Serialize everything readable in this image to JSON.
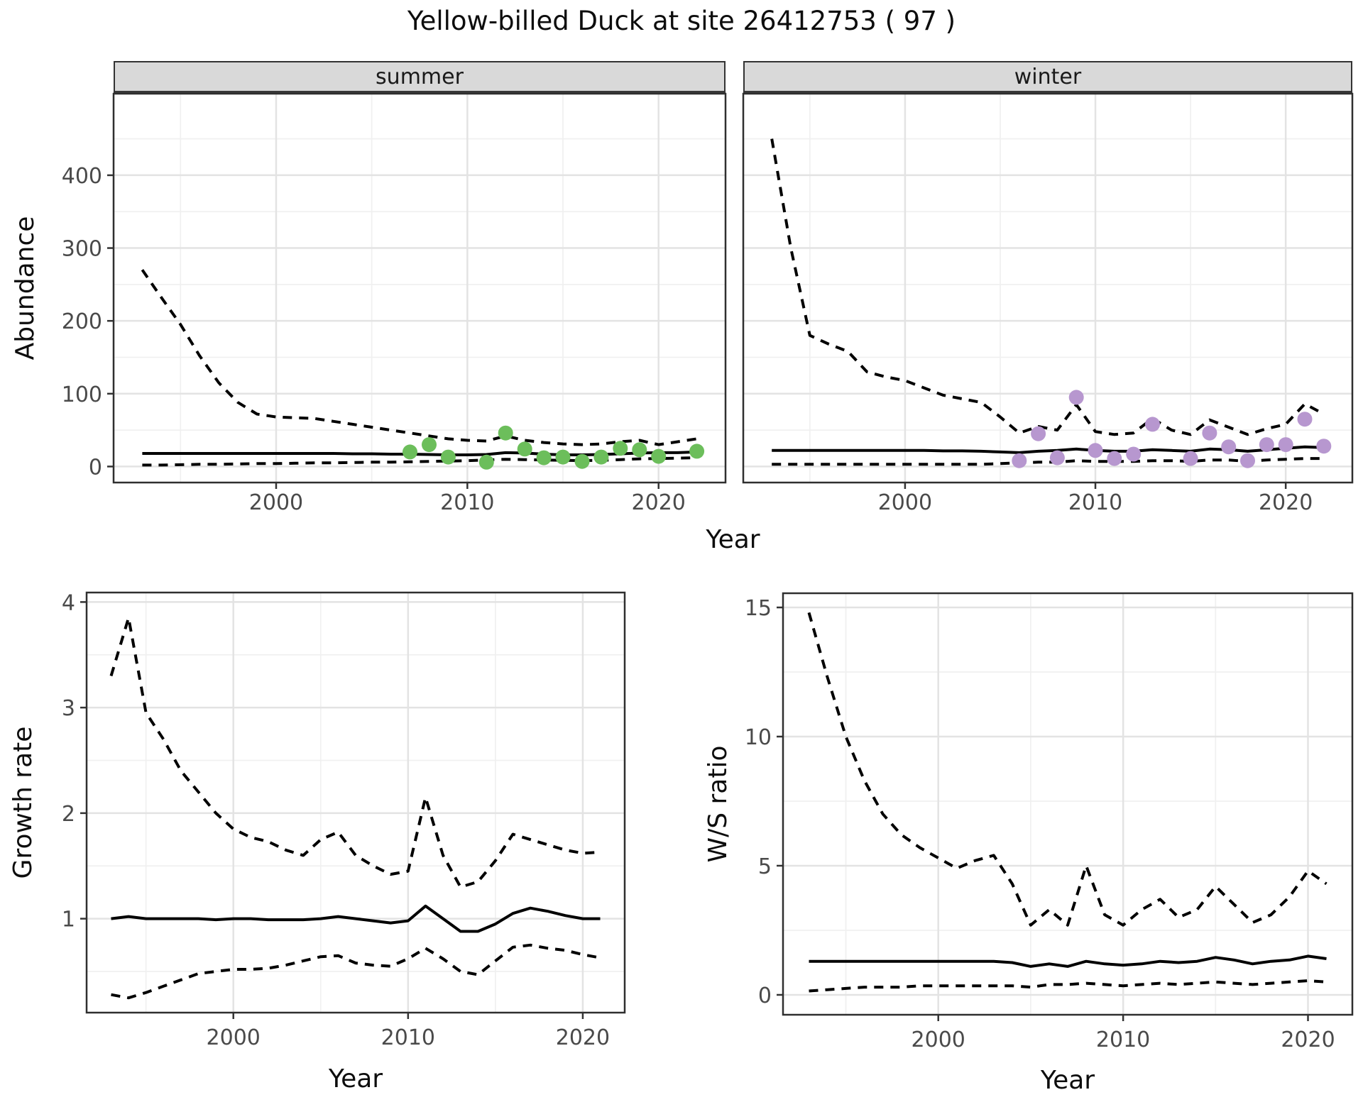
{
  "title": "Yellow-billed Duck at site 26412753 ( 97 )",
  "facets": [
    {
      "label": "summer"
    },
    {
      "label": "winter"
    }
  ],
  "axis_titles": {
    "abundance": "Abundance",
    "year": "Year",
    "growth": "Growth rate",
    "ws": "W/S ratio"
  },
  "colors": {
    "summer_point": "#6CBE5B",
    "winter_point": "#B797CF",
    "line": "#000000",
    "grid_major": "#E3E3E3",
    "grid_minor": "#F0F0F0",
    "panel_border": "#2F2F2F",
    "tick_mark": "#333333",
    "tick_label": "#4A4A4A",
    "strip_bg": "#D9D9D9"
  },
  "chart_data": [
    {
      "id": "abundance-summer",
      "type": "line",
      "title": "summer",
      "xlabel": "Year",
      "ylabel": "Abundance",
      "xlim": [
        1991.5,
        2023.5
      ],
      "ylim": [
        -22,
        512
      ],
      "xticks": [
        2000,
        2010,
        2020
      ],
      "xtick_labels": [
        "2000",
        "2010",
        "2020"
      ],
      "xticks_minor": [
        1995,
        2005,
        2015
      ],
      "yticks": [
        0,
        100,
        200,
        300,
        400
      ],
      "ytick_labels": [
        "0",
        "100",
        "200",
        "300",
        "400"
      ],
      "yticks_minor": [
        50,
        150,
        250,
        350,
        450
      ],
      "show_ytick_labels": true,
      "grid": true,
      "x_years": [
        1993,
        1994,
        1995,
        1996,
        1997,
        1998,
        1999,
        2000,
        2001,
        2002,
        2003,
        2004,
        2005,
        2006,
        2007,
        2008,
        2009,
        2010,
        2011,
        2012,
        2013,
        2014,
        2015,
        2016,
        2017,
        2018,
        2019,
        2020,
        2021,
        2022
      ],
      "series": [
        {
          "name": "ci_upper",
          "style": "dashed",
          "values": [
            270,
            232,
            195,
            152,
            115,
            88,
            72,
            68,
            67,
            66,
            62,
            58,
            54,
            50,
            46,
            42,
            38,
            36,
            35,
            42,
            36,
            33,
            31,
            30,
            31,
            34,
            36,
            30,
            34,
            38
          ]
        },
        {
          "name": "fit",
          "style": "solid",
          "values": [
            18,
            18,
            18,
            18,
            18,
            18,
            18,
            18,
            18,
            18,
            18,
            17.5,
            17.5,
            17,
            17,
            16.5,
            16,
            16,
            16.5,
            19,
            18.5,
            17,
            16,
            16,
            16.5,
            17.5,
            18.5,
            19,
            19,
            20
          ]
        },
        {
          "name": "ci_lower",
          "style": "dashed",
          "values": [
            2,
            2,
            2.5,
            3,
            3,
            3.5,
            4,
            4,
            4.5,
            5,
            5,
            5.5,
            6,
            6,
            6.5,
            7,
            7.5,
            8,
            9,
            10,
            9.5,
            9,
            8.5,
            8,
            8.5,
            9.5,
            10.5,
            11,
            11.5,
            12
          ]
        }
      ],
      "points": {
        "name": "observed-counts",
        "color_key": "summer_point",
        "years": [
          2007,
          2008,
          2009,
          2011,
          2012,
          2013,
          2014,
          2015,
          2016,
          2017,
          2018,
          2019,
          2020,
          2022
        ],
        "values": [
          20,
          30,
          13,
          6,
          46,
          24,
          12,
          13,
          7,
          13,
          25,
          23,
          14,
          21
        ]
      }
    },
    {
      "id": "abundance-winter",
      "type": "line",
      "title": "winter",
      "xlabel": "Year",
      "ylabel": "Abundance",
      "xlim": [
        1991.5,
        2023.5
      ],
      "ylim": [
        -22,
        512
      ],
      "xticks": [
        2000,
        2010,
        2020
      ],
      "xtick_labels": [
        "2000",
        "2010",
        "2020"
      ],
      "xticks_minor": [
        1995,
        2005,
        2015
      ],
      "yticks": [
        0,
        100,
        200,
        300,
        400
      ],
      "ytick_labels": [
        "0",
        "100",
        "200",
        "300",
        "400"
      ],
      "yticks_minor": [
        50,
        150,
        250,
        350,
        450
      ],
      "show_ytick_labels": false,
      "grid": true,
      "x_years": [
        1993,
        1994,
        1995,
        1996,
        1997,
        1998,
        1999,
        2000,
        2001,
        2002,
        2003,
        2004,
        2005,
        2006,
        2007,
        2008,
        2009,
        2010,
        2011,
        2012,
        2013,
        2014,
        2015,
        2016,
        2017,
        2018,
        2019,
        2020,
        2021,
        2022
      ],
      "series": [
        {
          "name": "ci_upper",
          "style": "dashed",
          "values": [
            450,
            300,
            180,
            168,
            158,
            130,
            123,
            118,
            108,
            98,
            93,
            88,
            68,
            46,
            55,
            50,
            85,
            48,
            44,
            46,
            66,
            50,
            44,
            64,
            54,
            44,
            52,
            58,
            86,
            72
          ]
        },
        {
          "name": "fit",
          "style": "solid",
          "values": [
            22,
            22,
            22,
            22,
            22,
            22,
            22,
            22,
            22,
            21.5,
            21.5,
            21,
            20,
            19,
            21,
            22,
            24,
            22,
            21,
            21,
            23,
            22,
            21,
            24,
            23,
            21,
            23,
            25,
            27,
            26
          ]
        },
        {
          "name": "ci_lower",
          "style": "dashed",
          "values": [
            3,
            3,
            3,
            3,
            3,
            3,
            3,
            3,
            3,
            3,
            3,
            3,
            4,
            5,
            6,
            6,
            8,
            7,
            7,
            7,
            8,
            8,
            7,
            9,
            9,
            7,
            9,
            10,
            11,
            11
          ]
        }
      ],
      "points": {
        "name": "observed-counts",
        "color_key": "winter_point",
        "years": [
          2006,
          2007,
          2008,
          2009,
          2010,
          2011,
          2012,
          2013,
          2015,
          2016,
          2017,
          2018,
          2019,
          2020,
          2021,
          2022
        ],
        "values": [
          8,
          45,
          12,
          95,
          22,
          11,
          17,
          58,
          11,
          46,
          27,
          8,
          30,
          30,
          65,
          28
        ]
      }
    },
    {
      "id": "growth-rate",
      "type": "line",
      "title": "Growth rate",
      "xlabel": "Year",
      "ylabel": "Growth rate",
      "xlim": [
        1991.6,
        2022.4
      ],
      "ylim": [
        0.11,
        4.09
      ],
      "xticks": [
        2000,
        2010,
        2020
      ],
      "xtick_labels": [
        "2000",
        "2010",
        "2020"
      ],
      "xticks_minor": [
        1995,
        2005,
        2015
      ],
      "yticks": [
        1,
        2,
        3,
        4
      ],
      "ytick_labels": [
        "1",
        "2",
        "3",
        "4"
      ],
      "yticks_minor": [
        0.5,
        1.5,
        2.5,
        3.5
      ],
      "show_ytick_labels": true,
      "grid": true,
      "x_years": [
        1993,
        1994,
        1995,
        1996,
        1997,
        1998,
        1999,
        2000,
        2001,
        2002,
        2003,
        2004,
        2005,
        2006,
        2007,
        2008,
        2009,
        2010,
        2011,
        2012,
        2013,
        2014,
        2015,
        2016,
        2017,
        2018,
        2019,
        2020,
        2021
      ],
      "series": [
        {
          "name": "ci_upper",
          "style": "dashed",
          "values": [
            3.3,
            3.85,
            2.95,
            2.7,
            2.4,
            2.2,
            2.0,
            1.85,
            1.77,
            1.73,
            1.65,
            1.6,
            1.75,
            1.82,
            1.6,
            1.5,
            1.42,
            1.45,
            2.15,
            1.6,
            1.3,
            1.35,
            1.55,
            1.8,
            1.75,
            1.7,
            1.65,
            1.62,
            1.63
          ]
        },
        {
          "name": "fit",
          "style": "solid",
          "values": [
            1.0,
            1.02,
            1.0,
            1.0,
            1.0,
            1.0,
            0.99,
            1.0,
            1.0,
            0.99,
            0.99,
            0.99,
            1.0,
            1.02,
            1.0,
            0.98,
            0.96,
            0.98,
            1.12,
            1.0,
            0.88,
            0.88,
            0.95,
            1.05,
            1.1,
            1.07,
            1.03,
            1.0,
            1.0
          ]
        },
        {
          "name": "ci_lower",
          "style": "dashed",
          "values": [
            0.28,
            0.25,
            0.3,
            0.36,
            0.42,
            0.48,
            0.5,
            0.52,
            0.52,
            0.53,
            0.56,
            0.6,
            0.64,
            0.65,
            0.58,
            0.56,
            0.55,
            0.62,
            0.72,
            0.62,
            0.5,
            0.47,
            0.6,
            0.73,
            0.75,
            0.72,
            0.7,
            0.66,
            0.63
          ]
        }
      ],
      "points": null
    },
    {
      "id": "ws-ratio",
      "type": "line",
      "title": "W/S ratio",
      "xlabel": "Year",
      "ylabel": "W/S ratio",
      "xlim": [
        1991.6,
        2022.4
      ],
      "ylim": [
        -0.77,
        15.55
      ],
      "xticks": [
        2000,
        2010,
        2020
      ],
      "xtick_labels": [
        "2000",
        "2010",
        "2020"
      ],
      "xticks_minor": [
        1995,
        2005,
        2015
      ],
      "yticks": [
        0,
        5,
        10,
        15
      ],
      "ytick_labels": [
        "0",
        "5",
        "10",
        "15"
      ],
      "yticks_minor": [
        2.5,
        7.5,
        12.5
      ],
      "show_ytick_labels": true,
      "grid": true,
      "x_years": [
        1993,
        1994,
        1995,
        1996,
        1997,
        1998,
        1999,
        2000,
        2001,
        2002,
        2003,
        2004,
        2005,
        2006,
        2007,
        2008,
        2009,
        2010,
        2011,
        2012,
        2013,
        2014,
        2015,
        2016,
        2017,
        2018,
        2019,
        2020,
        2021
      ],
      "series": [
        {
          "name": "ci_upper",
          "style": "dashed",
          "values": [
            14.8,
            12.3,
            10.0,
            8.3,
            7.0,
            6.2,
            5.7,
            5.3,
            4.9,
            5.2,
            5.4,
            4.3,
            2.7,
            3.3,
            2.7,
            5.0,
            3.1,
            2.7,
            3.3,
            3.7,
            3.0,
            3.3,
            4.2,
            3.5,
            2.8,
            3.1,
            3.8,
            4.8,
            4.3
          ]
        },
        {
          "name": "fit",
          "style": "solid",
          "values": [
            1.3,
            1.3,
            1.3,
            1.3,
            1.3,
            1.3,
            1.3,
            1.3,
            1.3,
            1.3,
            1.3,
            1.25,
            1.1,
            1.2,
            1.1,
            1.3,
            1.2,
            1.15,
            1.2,
            1.3,
            1.25,
            1.3,
            1.45,
            1.35,
            1.2,
            1.3,
            1.35,
            1.5,
            1.4
          ]
        },
        {
          "name": "ci_lower",
          "style": "dashed",
          "values": [
            0.15,
            0.2,
            0.25,
            0.3,
            0.3,
            0.3,
            0.35,
            0.35,
            0.35,
            0.35,
            0.35,
            0.35,
            0.3,
            0.4,
            0.4,
            0.45,
            0.4,
            0.35,
            0.4,
            0.45,
            0.4,
            0.45,
            0.5,
            0.45,
            0.4,
            0.45,
            0.5,
            0.55,
            0.5
          ]
        }
      ],
      "points": null
    }
  ]
}
